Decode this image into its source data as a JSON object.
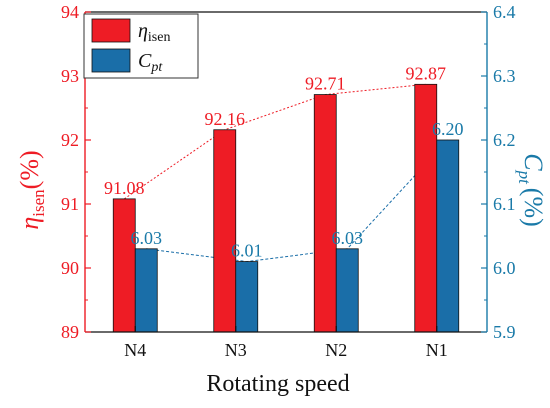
{
  "chart_data": {
    "type": "bar",
    "categories": [
      "N4",
      "N3",
      "N2",
      "N1"
    ],
    "xlabel": "Rotating speed",
    "ylabel_left": {
      "main": "η",
      "sub": "isen",
      "unit": "(%)"
    },
    "ylabel_right": {
      "main": "C",
      "sub": "pt",
      "unit": "(%)"
    },
    "ylim_left": [
      89,
      94
    ],
    "ylim_right": [
      5.9,
      6.4
    ],
    "yticks_left": [
      "89",
      "90",
      "91",
      "92",
      "93",
      "94"
    ],
    "yticks_right": [
      "5.9",
      "6.0",
      "6.1",
      "6.2",
      "6.3",
      "6.4"
    ],
    "grid": false,
    "legend_position": "top-left",
    "series": [
      {
        "name": {
          "main": "η",
          "sub": "isen"
        },
        "axis": "left",
        "color": "#ee1c25",
        "values": [
          91.08,
          92.16,
          92.71,
          92.87
        ],
        "labels": [
          "91.08",
          "92.16",
          "92.71",
          "92.87"
        ]
      },
      {
        "name": {
          "main": "C",
          "sub": "pt"
        },
        "axis": "right",
        "color": "#1a6ea8",
        "values": [
          6.03,
          6.01,
          6.03,
          6.2
        ],
        "labels": [
          "6.03",
          "6.01",
          "6.03",
          "6.20"
        ]
      }
    ],
    "colors": {
      "left_axis": "#ee1c25",
      "right_axis": "#1a7aa8"
    }
  }
}
